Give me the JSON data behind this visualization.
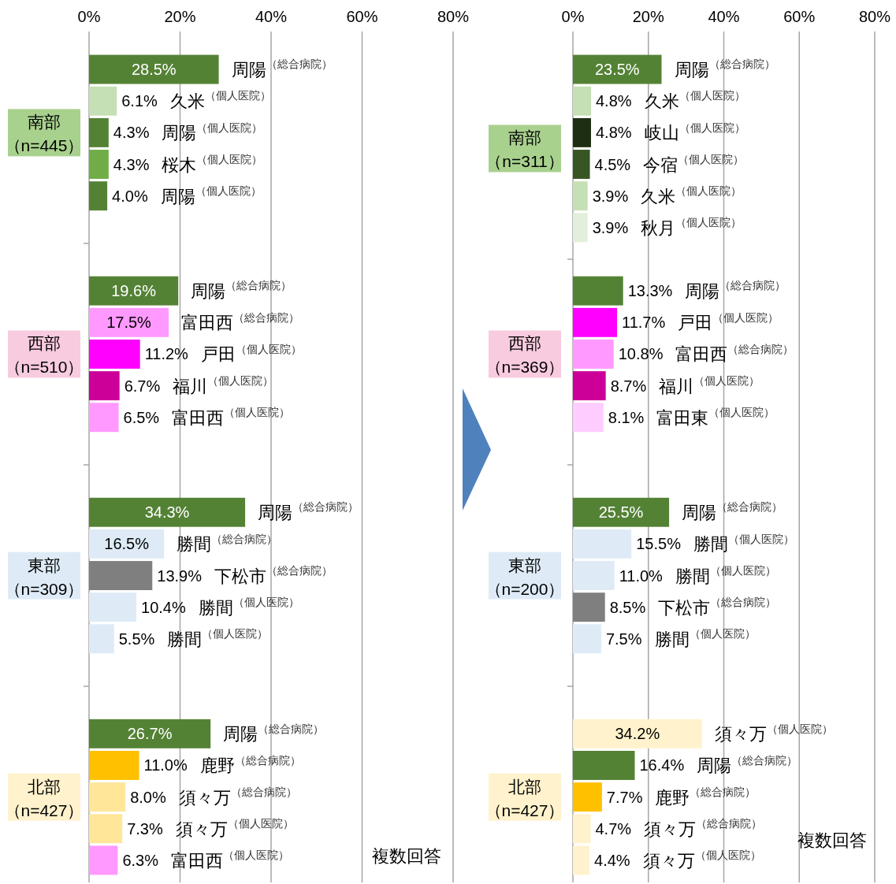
{
  "chart_data": [
    {
      "type": "bar",
      "orientation": "horizontal",
      "grid": "x",
      "xlim": [
        0,
        80
      ],
      "xticks": [
        {
          "value": 0,
          "label": "0%"
        },
        {
          "value": 20,
          "label": "20%"
        },
        {
          "value": 40,
          "label": "40%"
        },
        {
          "value": 60,
          "label": "60%"
        },
        {
          "value": 80,
          "label": "80%"
        }
      ],
      "categories": [
        "周陽$^{（総合病院）}$",
        "久米$^{（個人医院）}$",
        "周陽$^{（個人医院）}$",
        "桜木$^{（個人医院）}$",
        "周陽$^{（個人医院）}$",
        null,
        null,
        "周陽$^{（総合病院）}$",
        "富田西$^{（総合病院）}$",
        "戸田$^{（個人医院）}$",
        "福川$^{（個人医院）}$",
        "富田西$^{（個人医院）}$",
        null,
        null,
        "周陽$^{（総合病院）}$",
        "勝間$^{（総合病院）}$",
        "下松市$^{（総合病院）}$",
        "勝間$^{（個人医院）}$",
        "勝間$^{（個人医院）}$",
        null,
        null,
        "周陽$^{（総合病院）}$",
        "鹿野$^{（総合病院）}$",
        "須々万$^{（総合病院）}$",
        "須々万$^{（個人医院）}$",
        "富田西$^{（個人医院）}$"
      ],
      "values": [
        28.5,
        6.1,
        4.3,
        4.3,
        4.0,
        null,
        null,
        19.6,
        17.5,
        11.2,
        6.7,
        6.5,
        null,
        null,
        34.3,
        16.5,
        13.9,
        10.4,
        5.5,
        null,
        null,
        26.7,
        11.0,
        8.0,
        7.3,
        6.3
      ],
      "value_labels": [
        "28.5%",
        "6.1%",
        "4.3%",
        "4.3%",
        "4.0%",
        null,
        null,
        "19.6%",
        "17.5%",
        "11.2%",
        "6.7%",
        "6.5%",
        null,
        null,
        "34.3%",
        "16.5%",
        "13.9%",
        "10.4%",
        "5.5%",
        null,
        null,
        "26.7%",
        "11.0%",
        "8.0%",
        "7.3%",
        "6.3%"
      ],
      "colors": [
        "#548235",
        "#c5e0b4",
        "#548235",
        "#70ad47",
        "#548235",
        null,
        null,
        "#548235",
        "#ff99ff",
        "#ff00ff",
        "#cc0099",
        "#ff99ff",
        null,
        null,
        "#548235",
        "#deebf7",
        "#7f7f7f",
        "#deebf7",
        "#deebf7",
        null,
        null,
        "#548235",
        "#ffc000",
        "#ffe699",
        "#ffe699",
        "#ff99ff"
      ],
      "annotations": [
        "南部（n=445）",
        "西部（n=510）",
        "東部（n=309）",
        "北部（n=427）",
        "複数回答"
      ]
    },
    {
      "type": "bar",
      "orientation": "horizontal",
      "grid": "x",
      "xlim": [
        0,
        80
      ],
      "xticks": [
        {
          "value": 0,
          "label": "0%"
        },
        {
          "value": 20,
          "label": "20%"
        },
        {
          "value": 40,
          "label": "40%"
        },
        {
          "value": 60,
          "label": "60%"
        },
        {
          "value": 80,
          "label": "80%"
        }
      ],
      "categories": [
        "周陽$^{（総合病院）}$",
        "久米$^{（個人医院）}$",
        "岐山$^{（個人医院）}$",
        "今宿$^{（個人医院）}$",
        "久米$^{（個人医院）}$",
        "秋月$^{（個人医院）}$",
        null,
        "周陽$^{（総合病院）}$",
        "戸田$^{（個人医院）}$",
        "富田西$^{（総合病院）}$",
        "福川$^{（個人医院）}$",
        "富田東$^{（個人医院）}$",
        null,
        null,
        "周陽$^{（総合病院）}$",
        "勝間$^{（個人医院）}$",
        "勝間$^{（個人医院）}$",
        "下松市$^{（総合病院）}$",
        "勝間$^{（個人医院）}$",
        null,
        null,
        "須々万$^{（個人医院）}$",
        "周陽$^{（総合病院）}$",
        "鹿野$^{（総合病院）}$",
        "須々万$^{（総合病院）}$",
        "須々万$^{（個人医院）}$"
      ],
      "values": [
        23.5,
        4.8,
        4.8,
        4.5,
        3.9,
        3.9,
        null,
        13.3,
        11.7,
        10.8,
        8.7,
        8.1,
        null,
        null,
        25.5,
        15.5,
        11.0,
        8.5,
        7.5,
        null,
        null,
        34.2,
        16.4,
        7.7,
        4.7,
        4.4
      ],
      "value_labels": [
        "23.5%",
        "4.8%",
        "4.8%",
        "4.5%",
        "3.9%",
        "3.9%",
        null,
        "13.3%",
        "11.7%",
        "10.8%",
        "8.7%",
        "8.1%",
        null,
        null,
        "25.5%",
        "15.5%",
        "11.0%",
        "8.5%",
        "7.5%",
        null,
        null,
        "34.2%",
        "16.4%",
        "7.7%",
        "4.7%",
        "4.4%"
      ],
      "colors": [
        "#548235",
        "#c5e0b4",
        "#1e2e12",
        "#375623",
        "#c5e0b4",
        "#e2efda",
        null,
        "#548235",
        "#ff00ff",
        "#ff99ff",
        "#cc0099",
        "#ffccff",
        null,
        null,
        "#548235",
        "#deebf7",
        "#deebf7",
        "#7f7f7f",
        "#deebf7",
        null,
        null,
        "#fff2cc",
        "#548235",
        "#ffc000",
        "#fff2cc",
        "#fff2cc"
      ],
      "annotations": [
        "南部（n=311）",
        "西部（n=369）",
        "東部（n=200）",
        "北部（n=427）",
        "複数回答"
      ]
    }
  ]
}
